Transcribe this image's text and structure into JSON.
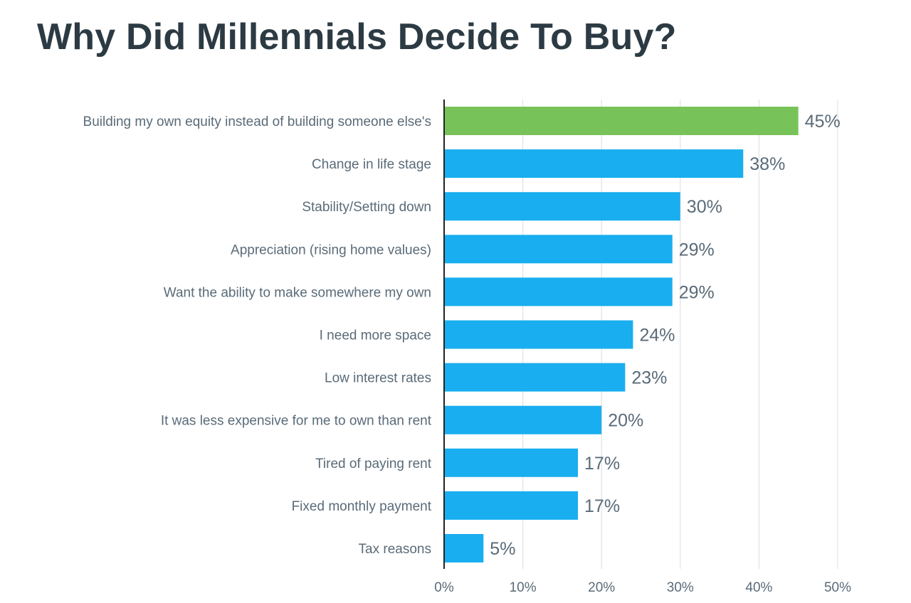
{
  "chart_data": {
    "type": "bar",
    "orientation": "horizontal",
    "title": "Why Did Millennials Decide To Buy?",
    "xlabel": "",
    "ylabel": "",
    "categories": [
      "Building my own equity instead of building someone else's",
      "Change in life stage",
      "Stability/Setting down",
      "Appreciation (rising home values)",
      "Want the ability to make somewhere my own",
      "I need more space",
      "Low interest rates",
      "It was less expensive for me to own than rent",
      "Tired of paying rent",
      "Fixed monthly payment",
      "Tax reasons"
    ],
    "values": [
      45,
      38,
      30,
      29,
      29,
      24,
      23,
      20,
      17,
      17,
      5
    ],
    "value_labels": [
      "45%",
      "38%",
      "30%",
      "29%",
      "29%",
      "24%",
      "23%",
      "20%",
      "17%",
      "17%",
      "5%"
    ],
    "xlim": [
      0,
      50
    ],
    "x_ticks": [
      0,
      10,
      20,
      30,
      40,
      50
    ],
    "x_tick_labels": [
      "0%",
      "10%",
      "20%",
      "30%",
      "40%",
      "50%"
    ],
    "grid": "vertical",
    "legend": "none",
    "colors": {
      "highlight": "#77c35a",
      "bar": "#19aeef",
      "grid": "#dddddd",
      "axis": "#222222",
      "title": "#2c3a43",
      "text": "#5a6b78"
    },
    "highlight_index": 0
  }
}
